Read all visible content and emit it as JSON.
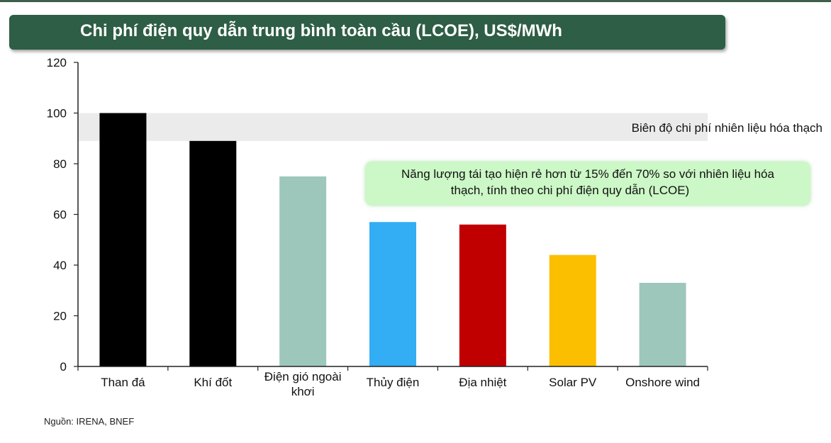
{
  "title": "Chi phí điện quy dẫn trung bình toàn cầu (LCOE), US$/MWh",
  "band_label": "Biên độ chi phí nhiên liệu hóa thạch",
  "callout": {
    "line1": "Năng lượng tái tạo hiện rẻ hơn từ 15% đến 70% so với nhiên liệu hóa",
    "line2": "thạch, tính theo chi phí điện quy dẫn (LCOE)"
  },
  "source": "Nguồn: IRENA, BNEF",
  "colors": {
    "banner": "#2e5e45",
    "callout": "#ccf7c6",
    "band": "#ebebeb"
  },
  "chart_data": {
    "type": "bar",
    "title": "Chi phí điện quy dẫn trung bình toàn cầu (LCOE), US$/MWh",
    "categories": [
      [
        "Than đá"
      ],
      [
        "Khí đốt"
      ],
      [
        "Điện gió ngoài",
        "khơi"
      ],
      [
        "Thủy điện"
      ],
      [
        "Địa nhiệt"
      ],
      [
        "Solar PV"
      ],
      [
        "Onshore wind"
      ]
    ],
    "values": [
      100,
      89,
      75,
      57,
      56,
      44,
      33
    ],
    "bar_colors": [
      "#000000",
      "#000000",
      "#9ec7bb",
      "#33adf4",
      "#c00000",
      "#fbbf00",
      "#9ec7bb"
    ],
    "ylim": [
      0,
      120
    ],
    "yticks": [
      0,
      20,
      40,
      60,
      80,
      100,
      120
    ],
    "band": [
      89,
      100
    ],
    "xlabel": "",
    "ylabel": "",
    "grid": false,
    "legend": "none"
  }
}
